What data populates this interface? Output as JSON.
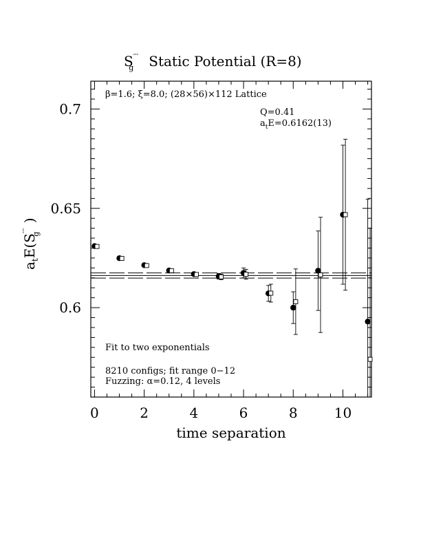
{
  "chart_data": {
    "type": "scatter",
    "title": {
      "symbol": "S",
      "primes": "′′′",
      "subscript": "g",
      "text": "Static Potential (R=8)"
    },
    "xlabel": "time separation",
    "ylabel": {
      "prefix": "a",
      "prefix_sub": "t",
      "body": "E(S",
      "primes": "′′′",
      "sub": "g",
      "suffix": " )"
    },
    "xlim": [
      -0.15,
      11.15
    ],
    "ylim": [
      0.555,
      0.714
    ],
    "x_ticks": [
      0,
      2,
      4,
      6,
      8,
      10
    ],
    "x_tick_labels": [
      "0",
      "2",
      "4",
      "6",
      "8",
      "10"
    ],
    "y_ticks": [
      0.6,
      0.65,
      0.7
    ],
    "y_tick_labels": [
      "0.6",
      "0.65",
      "0.7"
    ],
    "annotations": {
      "lattice": "β=1.6; ξ=8.0; (28×56)×112 Lattice",
      "q_value": "Q=0.41",
      "energy_prefix": "a",
      "energy_sub": "t",
      "energy_value": "E=0.6162(13)",
      "fit_type": "Fit to two exponentials",
      "configs": "8210 configs; fit range 0−12",
      "fuzzing": "Fuzzing: α=0.12, 4 levels"
    },
    "fit": {
      "central": 0.6162,
      "error": 0.0013
    },
    "series": [
      {
        "marker": "filled-circle",
        "x": [
          0,
          1,
          2,
          3,
          4,
          5,
          6,
          7,
          8,
          9,
          10,
          11
        ],
        "y": [
          0.631,
          0.6249,
          0.6214,
          0.6187,
          0.6169,
          0.6158,
          0.6175,
          0.6072,
          0.6,
          0.6186,
          0.6468,
          0.593
        ],
        "err": [
          0.0005,
          0.0005,
          0.0006,
          0.0008,
          0.001,
          0.0014,
          0.0025,
          0.004,
          0.008,
          0.02,
          0.035,
          0.0615
        ]
      },
      {
        "marker": "open-square",
        "x": [
          0.1,
          1.1,
          2.1,
          3.1,
          4.1,
          5.1,
          6.1,
          7.1,
          8.1,
          9.1,
          10.1,
          11.1
        ],
        "y": [
          0.6308,
          0.6248,
          0.6212,
          0.6186,
          0.6167,
          0.6155,
          0.6168,
          0.6073,
          0.603,
          0.6165,
          0.6468,
          0.574
        ],
        "err": [
          0.0005,
          0.0005,
          0.0006,
          0.0008,
          0.001,
          0.0014,
          0.0025,
          0.0045,
          0.0165,
          0.029,
          0.038,
          0.066
        ]
      }
    ],
    "grid": false,
    "legend": "none"
  }
}
